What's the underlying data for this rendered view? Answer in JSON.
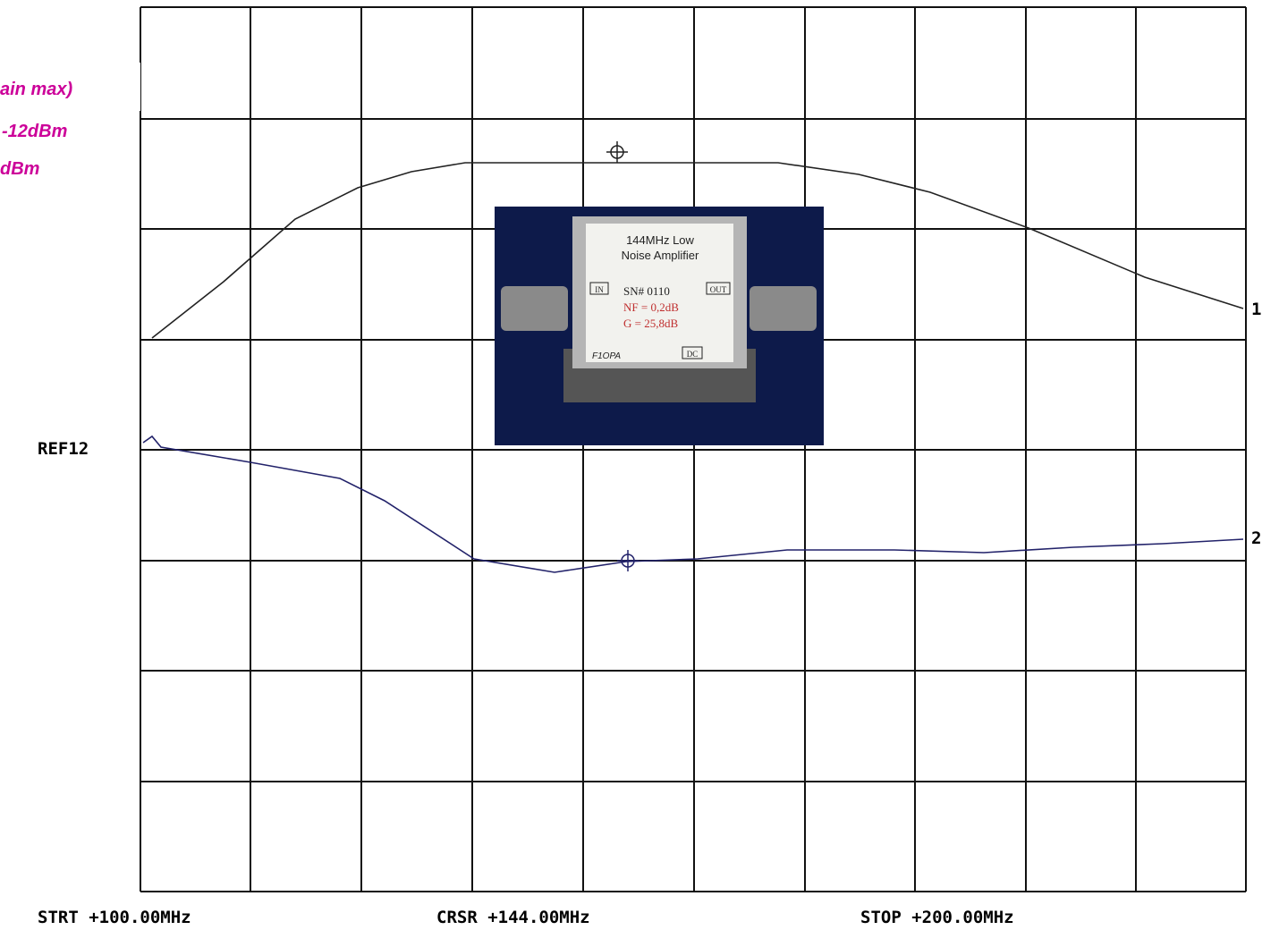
{
  "header": {
    "lines": [
      "ain max)",
      "-12dBm",
      "dBm"
    ]
  },
  "plot": {
    "ref_label": "REF12",
    "trace_labels": [
      "1",
      "2"
    ]
  },
  "footer": {
    "start": "STRT +100.00MHz",
    "cursor": "CRSR +144.00MHz",
    "stop": "STOP +200.00MHz"
  },
  "photo": {
    "title_lines": [
      "144MHz Low",
      "Noise Amplifier"
    ],
    "in": "IN",
    "out": "OUT",
    "serial": "SN# 0110",
    "nf": "NF = 0,2dB",
    "gain": "G = 25,8dB",
    "maker": "F1OPA",
    "dc": "DC"
  }
}
